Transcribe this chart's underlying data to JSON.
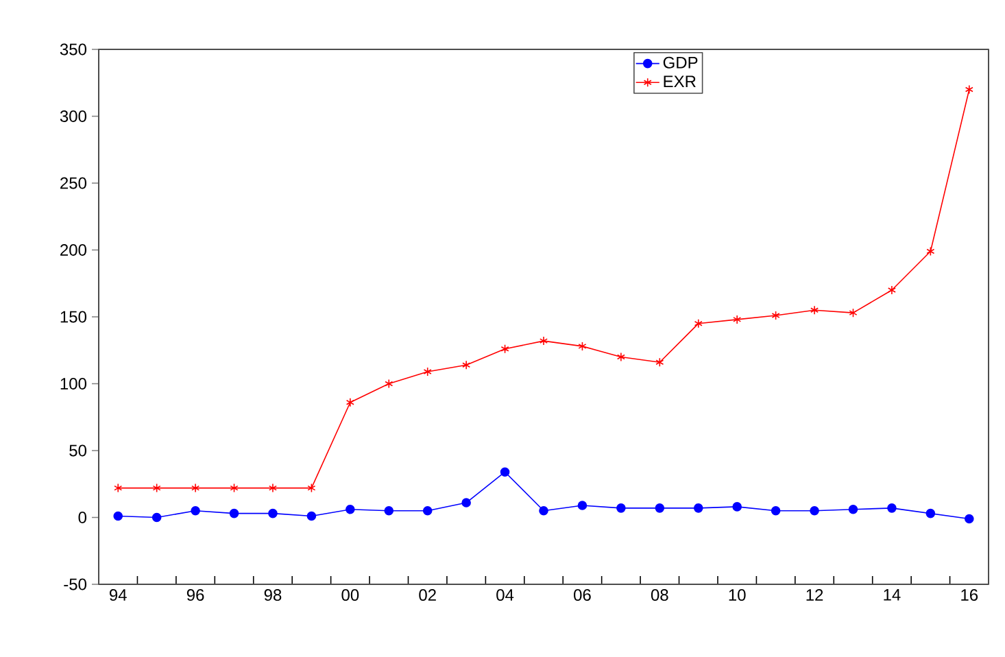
{
  "chart_data": {
    "type": "line",
    "categories": [
      "94",
      null,
      "96",
      null,
      "98",
      null,
      "00",
      null,
      "02",
      null,
      "04",
      null,
      "06",
      null,
      "08",
      null,
      "10",
      null,
      "12",
      null,
      "14",
      null,
      "16"
    ],
    "series": [
      {
        "name": "GDP",
        "color": "#0000ff",
        "marker": "circle",
        "values": [
          1,
          0,
          5,
          3,
          3,
          1,
          6,
          5,
          5,
          11,
          34,
          5,
          9,
          7,
          7,
          7,
          8,
          5,
          5,
          6,
          7,
          3,
          -1
        ]
      },
      {
        "name": "EXR",
        "color": "#ff0000",
        "marker": "cross",
        "values": [
          22,
          22,
          22,
          22,
          22,
          22,
          86,
          100,
          109,
          114,
          126,
          132,
          128,
          120,
          116,
          145,
          148,
          151,
          155,
          153,
          170,
          199,
          320
        ]
      }
    ],
    "ylim": [
      -50,
      350
    ],
    "yticks": [
      -50,
      0,
      50,
      100,
      150,
      200,
      250,
      300,
      350
    ],
    "grid": false,
    "legend": "top",
    "line_style": "solid"
  }
}
